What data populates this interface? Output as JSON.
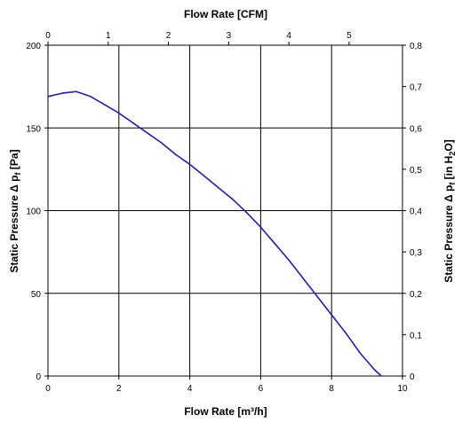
{
  "chart_data": {
    "type": "line",
    "x_label_bottom": "Flow Rate [m³/h]",
    "x_label_top": "Flow Rate [CFM]",
    "y_label_left": "Static Pressure Δ p",
    "y_label_left_sub": "f",
    "y_label_left_unit": " [Pa]",
    "y_label_right": "Static Pressure Δ p",
    "y_label_right_sub": "f",
    "y_label_right_mid": " [in H",
    "y_label_right_sub2": "2",
    "y_label_right_end": "O]",
    "xlim": [
      0,
      10
    ],
    "ylim": [
      0,
      200
    ],
    "x_ticks": [
      "0",
      "2",
      "4",
      "6",
      "8",
      "10"
    ],
    "y_ticks": [
      "0",
      "50",
      "100",
      "150",
      "200"
    ],
    "top_ticks": [
      "0",
      "1",
      "2",
      "3",
      "4",
      "5"
    ],
    "right_ticks": [
      "0",
      "0,1",
      "0,2",
      "0,3",
      "0,4",
      "0,5",
      "0,6",
      "0,7",
      "0,8"
    ],
    "grid": true,
    "line_color": "#1f1fb4",
    "series": [
      {
        "x": [
          0,
          0.4,
          0.8,
          1.2,
          1.6,
          2.0,
          2.4,
          2.8,
          3.2,
          3.6,
          4.0,
          4.4,
          4.8,
          5.2,
          5.6,
          6.0,
          6.4,
          6.8,
          7.2,
          7.6,
          8.0,
          8.4,
          8.8,
          9.2,
          9.4
        ],
        "y": [
          169,
          171,
          172,
          169,
          164,
          159,
          153,
          147,
          141,
          134,
          128,
          121,
          114,
          107,
          99,
          90,
          80,
          70,
          59,
          48,
          37,
          26,
          14,
          4,
          0
        ]
      }
    ]
  }
}
